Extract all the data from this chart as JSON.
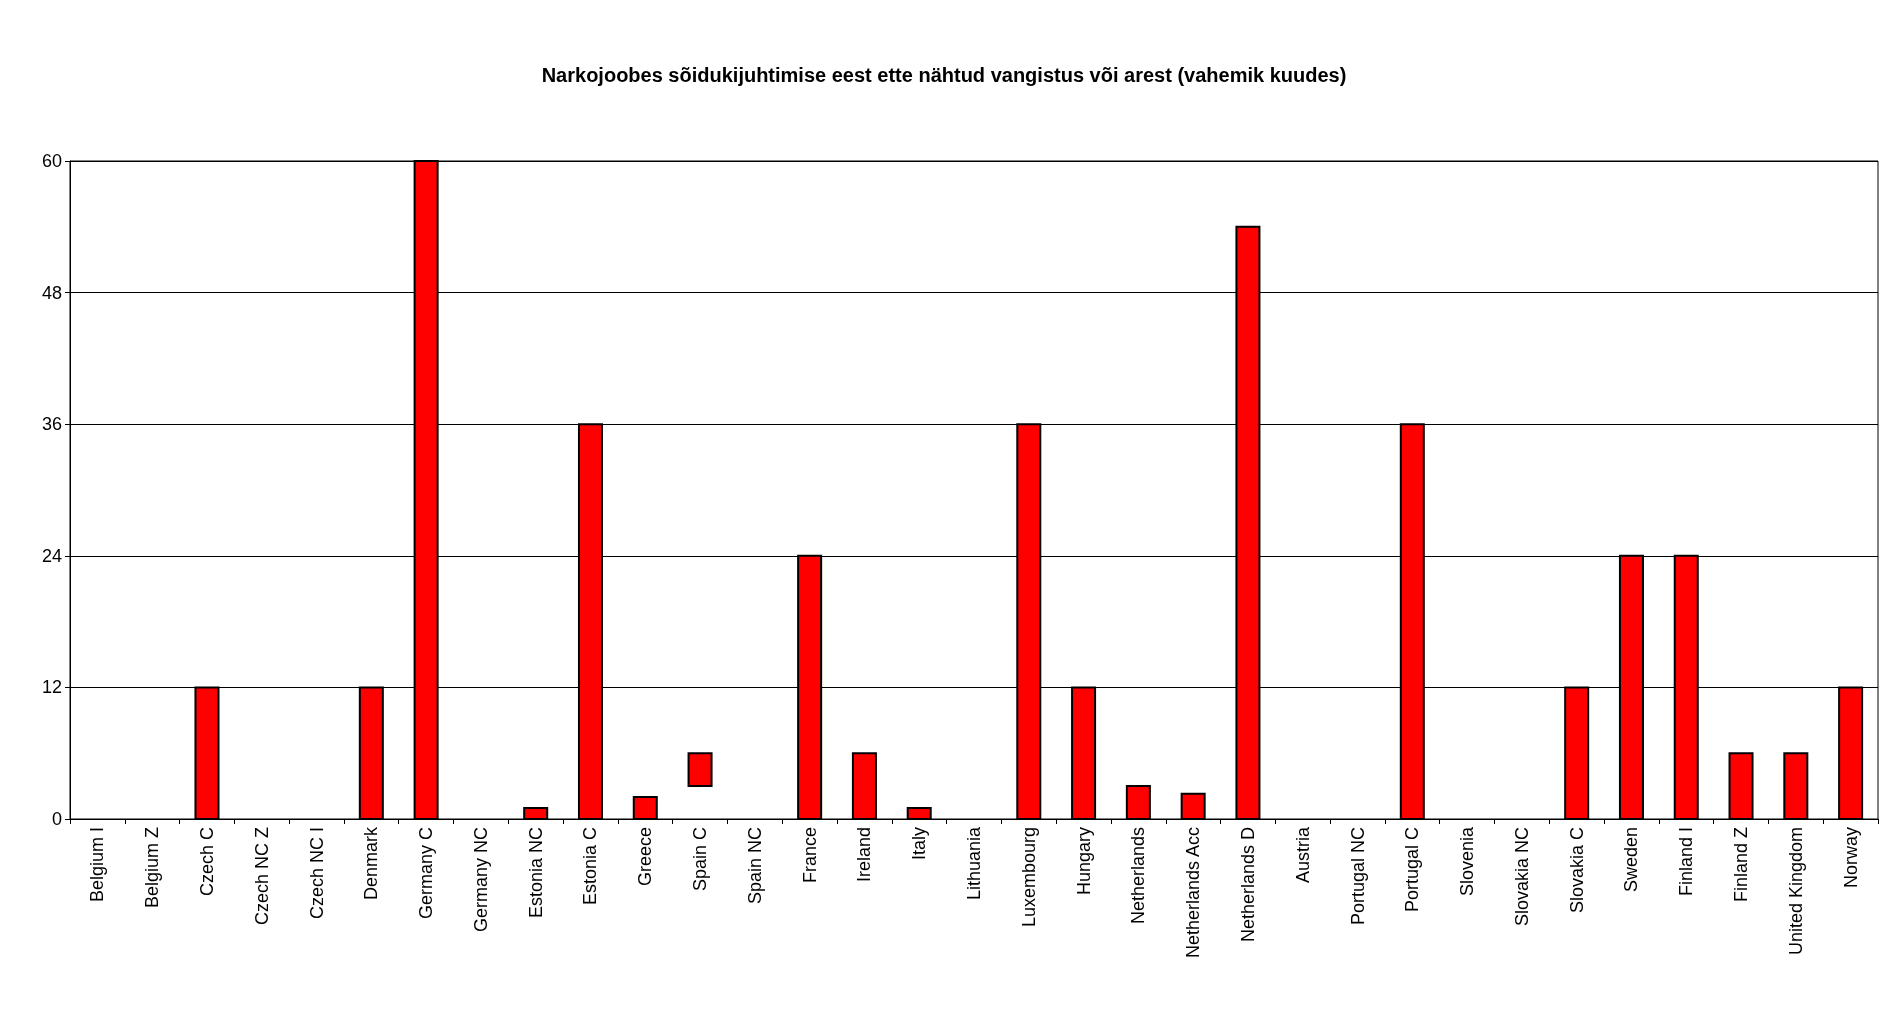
{
  "chart_data": {
    "type": "bar",
    "title": "Narkojoobes sõidukijuhtimise eest ette nähtud vangistus või arest (vahemik kuudes)",
    "categories": [
      "Belgium I",
      "Belgium Z",
      "Czech C",
      "Czech NC Z",
      "Czech NC I",
      "Denmark",
      "Germany C",
      "Germany NC",
      "Estonia NC",
      "Estonia C",
      "Greece",
      "Spain C",
      "Spain NC",
      "France",
      "Ireland",
      "Italy",
      "Lithuania",
      "Luxembourg",
      "Hungary",
      "Netherlands",
      "Netherlands Acc",
      "Netherlands D",
      "Austria",
      "Portugal NC",
      "Portugal C",
      "Slovenia",
      "Slovakia NC",
      "Slovakia C",
      "Sweden",
      "Finland I",
      "Finland Z",
      "United Kingdom",
      "Norway"
    ],
    "base": [
      null,
      null,
      0,
      null,
      null,
      0,
      0,
      null,
      0,
      0,
      0,
      3,
      null,
      0,
      0,
      0,
      null,
      0,
      0,
      0,
      0,
      0,
      null,
      null,
      0,
      null,
      null,
      0,
      0,
      0,
      0,
      0,
      0
    ],
    "values": [
      null,
      null,
      12,
      null,
      null,
      12,
      60,
      null,
      1,
      36,
      2,
      3,
      null,
      24,
      6,
      1,
      null,
      36,
      12,
      3,
      2.3,
      54,
      null,
      null,
      36,
      null,
      null,
      12,
      24,
      24,
      6,
      6,
      12
    ],
    "color": "#ff0000",
    "ylim": [
      0,
      60
    ],
    "yticks": [
      0,
      12,
      24,
      36,
      48,
      60
    ],
    "grid": "y"
  }
}
